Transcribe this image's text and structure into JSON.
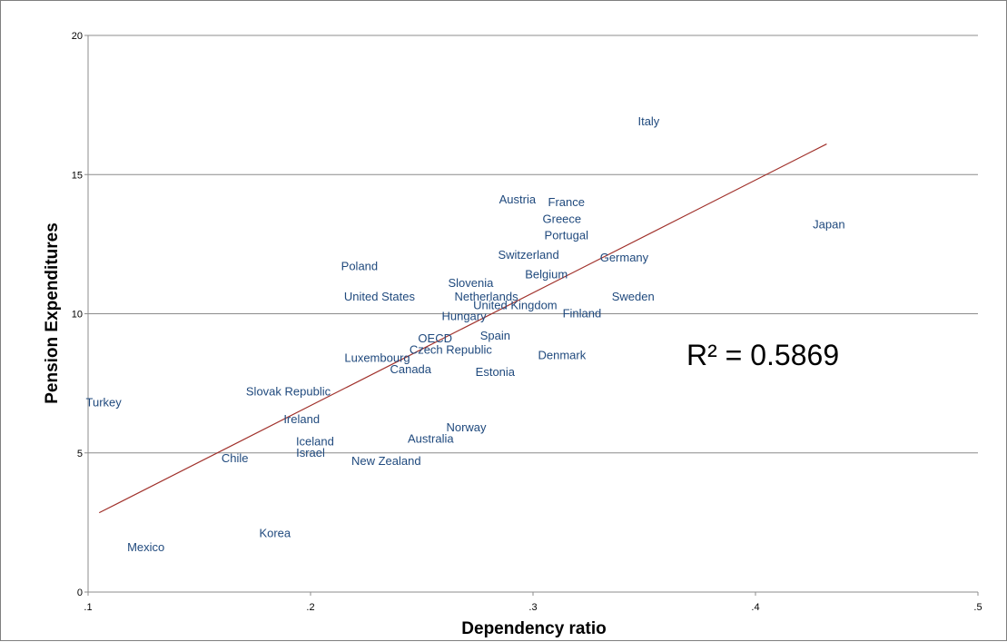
{
  "chart_data": {
    "type": "scatter",
    "xlabel": "Dependency ratio",
    "ylabel": "Pension Expenditures",
    "xlim": [
      0.1,
      0.5
    ],
    "ylim": [
      0,
      20
    ],
    "x_ticks": [
      ".1",
      ".2",
      ".3",
      ".4",
      ".5"
    ],
    "x_tick_values": [
      0.1,
      0.2,
      0.3,
      0.4,
      0.5
    ],
    "y_ticks": [
      "0",
      "5",
      "10",
      "15",
      "20"
    ],
    "y_tick_values": [
      0,
      5,
      10,
      15,
      20
    ],
    "grid": "horizontal",
    "annotation": "R² = 0.5869",
    "trendline": {
      "x": [
        0.105,
        0.432
      ],
      "y": [
        2.85,
        16.1
      ]
    },
    "points": [
      {
        "label": "Italy",
        "x": 0.352,
        "y": 16.9
      },
      {
        "label": "Austria",
        "x": 0.293,
        "y": 14.1
      },
      {
        "label": "France",
        "x": 0.315,
        "y": 14.0
      },
      {
        "label": "Greece",
        "x": 0.313,
        "y": 13.4
      },
      {
        "label": "Japan",
        "x": 0.433,
        "y": 13.2
      },
      {
        "label": "Portugal",
        "x": 0.315,
        "y": 12.8
      },
      {
        "label": "Switzerland",
        "x": 0.298,
        "y": 12.1
      },
      {
        "label": "Germany",
        "x": 0.341,
        "y": 12.0
      },
      {
        "label": "Poland",
        "x": 0.222,
        "y": 11.7
      },
      {
        "label": "Belgium",
        "x": 0.306,
        "y": 11.4
      },
      {
        "label": "Slovenia",
        "x": 0.272,
        "y": 11.1
      },
      {
        "label": "United States",
        "x": 0.231,
        "y": 10.6
      },
      {
        "label": "Netherlands",
        "x": 0.279,
        "y": 10.6
      },
      {
        "label": "Sweden",
        "x": 0.345,
        "y": 10.6
      },
      {
        "label": "United Kingdom",
        "x": 0.292,
        "y": 10.3
      },
      {
        "label": "Finland",
        "x": 0.322,
        "y": 10.0
      },
      {
        "label": "Hungary",
        "x": 0.269,
        "y": 9.9
      },
      {
        "label": "Spain",
        "x": 0.283,
        "y": 9.2
      },
      {
        "label": "OECD",
        "x": 0.256,
        "y": 9.1
      },
      {
        "label": "Czech Republic",
        "x": 0.263,
        "y": 8.7
      },
      {
        "label": "Denmark",
        "x": 0.313,
        "y": 8.5
      },
      {
        "label": "Luxembourg",
        "x": 0.23,
        "y": 8.4
      },
      {
        "label": "Canada",
        "x": 0.245,
        "y": 8.0
      },
      {
        "label": "Estonia",
        "x": 0.283,
        "y": 7.9
      },
      {
        "label": "Slovak Republic",
        "x": 0.19,
        "y": 7.2
      },
      {
        "label": "Turkey",
        "x": 0.107,
        "y": 6.8
      },
      {
        "label": "Ireland",
        "x": 0.196,
        "y": 6.2
      },
      {
        "label": "Norway",
        "x": 0.27,
        "y": 5.9
      },
      {
        "label": "Australia",
        "x": 0.254,
        "y": 5.5
      },
      {
        "label": "Iceland",
        "x": 0.202,
        "y": 5.4
      },
      {
        "label": "Israel",
        "x": 0.2,
        "y": 5.0
      },
      {
        "label": "Chile",
        "x": 0.166,
        "y": 4.8
      },
      {
        "label": "New Zealand",
        "x": 0.234,
        "y": 4.7
      },
      {
        "label": "Korea",
        "x": 0.184,
        "y": 2.1
      },
      {
        "label": "Mexico",
        "x": 0.126,
        "y": 1.6
      }
    ]
  }
}
